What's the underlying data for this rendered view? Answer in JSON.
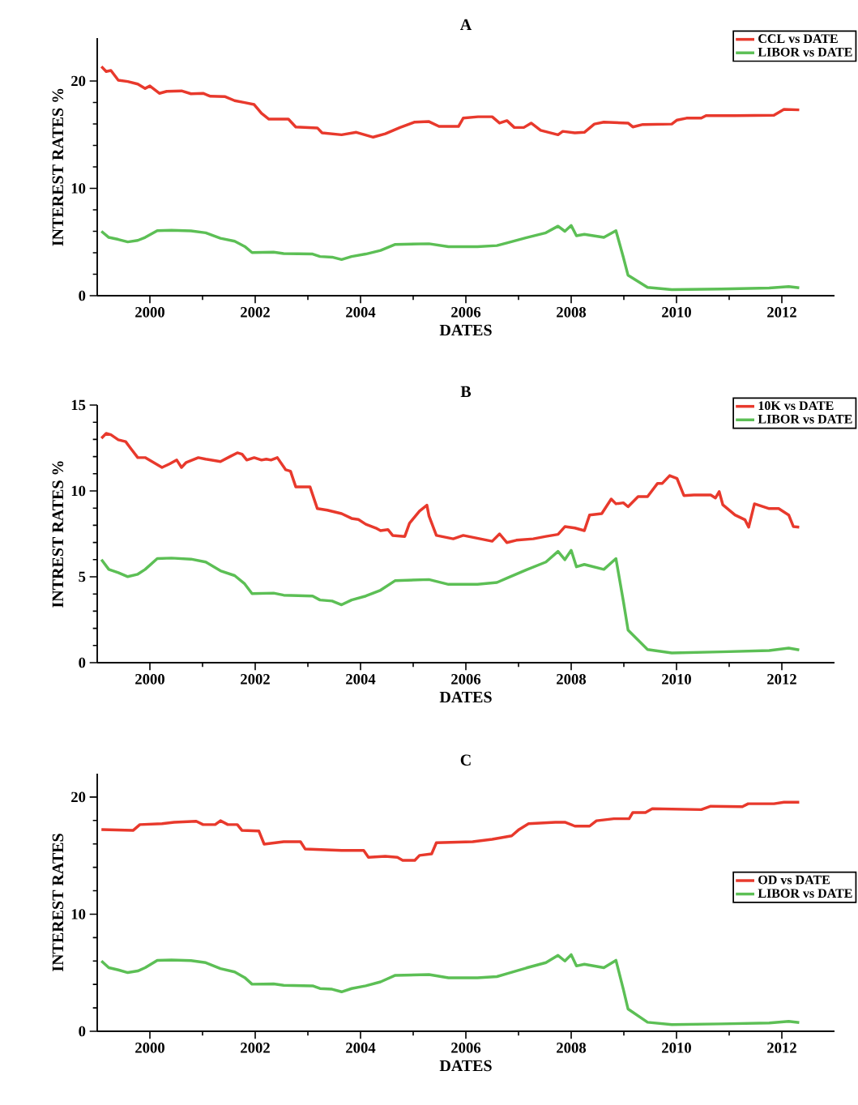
{
  "chart_data": [
    {
      "type": "line",
      "title": "A",
      "xlabel": "DATES",
      "ylabel": "INTEREST RATES %",
      "xlim": [
        1999,
        2013
      ],
      "ylim": [
        0,
        24
      ],
      "xticks": [
        2000,
        2002,
        2004,
        2006,
        2008,
        2010,
        2012
      ],
      "yticks": [
        0,
        10,
        20
      ],
      "legend": "top right",
      "series": [
        {
          "name": "CCL vs DATE",
          "color": "#e8392c",
          "x": [
            1999.08,
            1999.17,
            1999.26,
            1999.4,
            1999.58,
            1999.77,
            1999.91,
            2000.0,
            2000.18,
            2000.32,
            2000.6,
            2000.78,
            2001.01,
            2001.15,
            2001.43,
            2001.61,
            2001.8,
            2001.98,
            2002.12,
            2002.26,
            2002.63,
            2002.77,
            2003.18,
            2003.27,
            2003.64,
            2003.92,
            2004.24,
            2004.47,
            2004.75,
            2005.03,
            2005.3,
            2005.49,
            2005.86,
            2005.95,
            2006.23,
            2006.5,
            2006.64,
            2006.78,
            2006.92,
            2007.1,
            2007.24,
            2007.42,
            2007.75,
            2007.84,
            2008.07,
            2008.25,
            2008.44,
            2008.62,
            2009.08,
            2009.17,
            2009.36,
            2009.91,
            2010.01,
            2010.19,
            2010.47,
            2010.56,
            2011.11,
            2011.85,
            2012.04,
            2012.33
          ],
          "values": [
            21.35,
            20.89,
            20.98,
            20.08,
            19.95,
            19.72,
            19.31,
            19.54,
            18.85,
            19.04,
            19.08,
            18.81,
            18.85,
            18.58,
            18.54,
            18.17,
            17.99,
            17.81,
            16.99,
            16.45,
            16.45,
            15.72,
            15.63,
            15.17,
            14.99,
            15.22,
            14.77,
            15.08,
            15.67,
            16.17,
            16.22,
            15.77,
            15.77,
            16.54,
            16.67,
            16.67,
            16.08,
            16.31,
            15.67,
            15.67,
            16.08,
            15.4,
            14.99,
            15.31,
            15.17,
            15.22,
            15.99,
            16.17,
            16.08,
            15.72,
            15.95,
            15.99,
            16.36,
            16.54,
            16.54,
            16.77,
            16.77,
            16.81,
            17.36,
            17.31
          ]
        },
        {
          "name": "LIBOR vs DATE",
          "color": "#5cbf55",
          "x": [
            1999.08,
            1999.22,
            1999.4,
            1999.58,
            1999.77,
            1999.91,
            2000.14,
            2000.41,
            2000.78,
            2001.06,
            2001.34,
            2001.61,
            2001.8,
            2001.94,
            2002.35,
            2002.54,
            2003.09,
            2003.23,
            2003.46,
            2003.64,
            2003.83,
            2004.1,
            2004.38,
            2004.66,
            2005.3,
            2005.67,
            2006.22,
            2006.59,
            2006.78,
            2007.15,
            2007.52,
            2007.75,
            2007.88,
            2008.0,
            2008.1,
            2008.25,
            2008.62,
            2008.85,
            2008.99,
            2009.08,
            2009.45,
            2009.91,
            2010.84,
            2011.76,
            2012.13,
            2012.33
          ],
          "values": [
            6.0,
            5.43,
            5.24,
            5.01,
            5.15,
            5.43,
            6.06,
            6.09,
            6.03,
            5.86,
            5.35,
            5.07,
            4.59,
            4.02,
            4.05,
            3.93,
            3.88,
            3.65,
            3.59,
            3.37,
            3.65,
            3.88,
            4.22,
            4.78,
            4.84,
            4.56,
            4.56,
            4.67,
            4.92,
            5.41,
            5.86,
            6.48,
            6.0,
            6.54,
            5.58,
            5.72,
            5.43,
            6.06,
            3.59,
            1.9,
            0.77,
            0.57,
            0.63,
            0.71,
            0.85,
            0.74
          ]
        }
      ]
    },
    {
      "type": "line",
      "title": "B",
      "xlabel": "DATES",
      "ylabel": "INTREST RATES %",
      "xlim": [
        1999,
        2013
      ],
      "ylim": [
        0,
        15
      ],
      "xticks": [
        2000,
        2002,
        2004,
        2006,
        2008,
        2010,
        2012
      ],
      "yticks": [
        0,
        5,
        10,
        15
      ],
      "legend": "top right",
      "series": [
        {
          "name": "10K vs DATE",
          "color": "#e8392c",
          "x": [
            1999.08,
            1999.17,
            1999.26,
            1999.4,
            1999.54,
            1999.63,
            1999.77,
            1999.91,
            2000.23,
            2000.37,
            2000.51,
            2000.6,
            2000.69,
            2000.92,
            2001.06,
            2001.34,
            2001.52,
            2001.66,
            2001.75,
            2001.84,
            2001.98,
            2002.12,
            2002.21,
            2002.3,
            2002.42,
            2002.58,
            2002.67,
            2002.77,
            2003.04,
            2003.18,
            2003.37,
            2003.64,
            2003.83,
            2003.96,
            2004.1,
            2004.29,
            2004.38,
            2004.52,
            2004.61,
            2004.84,
            2004.93,
            2005.12,
            2005.26,
            2005.3,
            2005.44,
            2005.76,
            2005.95,
            2006.5,
            2006.64,
            2006.78,
            2006.96,
            2007.28,
            2007.52,
            2007.75,
            2007.88,
            2008.07,
            2008.25,
            2008.35,
            2008.58,
            2008.76,
            2008.85,
            2008.99,
            2009.08,
            2009.27,
            2009.45,
            2009.64,
            2009.73,
            2009.87,
            2010.01,
            2010.14,
            2010.33,
            2010.65,
            2010.74,
            2010.81,
            2010.88,
            2011.11,
            2011.3,
            2011.37,
            2011.48,
            2011.76,
            2011.94,
            2012.13,
            2012.22,
            2012.33
          ],
          "values": [
            13.07,
            13.35,
            13.27,
            12.98,
            12.87,
            12.5,
            11.94,
            11.94,
            11.37,
            11.57,
            11.8,
            11.37,
            11.66,
            11.94,
            11.85,
            11.71,
            12.0,
            12.22,
            12.14,
            11.8,
            11.94,
            11.8,
            11.85,
            11.8,
            11.94,
            11.23,
            11.15,
            10.24,
            10.24,
            8.97,
            8.88,
            8.68,
            8.4,
            8.34,
            8.06,
            7.84,
            7.69,
            7.75,
            7.41,
            7.35,
            8.12,
            8.83,
            9.17,
            8.54,
            7.41,
            7.21,
            7.41,
            7.07,
            7.5,
            6.99,
            7.13,
            7.21,
            7.35,
            7.47,
            7.92,
            7.84,
            7.69,
            8.6,
            8.68,
            9.53,
            9.25,
            9.31,
            9.08,
            9.67,
            9.67,
            10.44,
            10.44,
            10.89,
            10.72,
            9.73,
            9.76,
            9.76,
            9.59,
            9.96,
            9.19,
            8.6,
            8.32,
            7.89,
            9.25,
            8.97,
            8.97,
            8.6,
            7.92,
            7.89
          ]
        },
        {
          "name": "LIBOR vs DATE",
          "color": "#5cbf55",
          "x": [
            1999.08,
            1999.22,
            1999.4,
            1999.58,
            1999.77,
            1999.91,
            2000.14,
            2000.41,
            2000.78,
            2001.06,
            2001.34,
            2001.61,
            2001.8,
            2001.94,
            2002.35,
            2002.54,
            2003.09,
            2003.23,
            2003.46,
            2003.64,
            2003.83,
            2004.1,
            2004.38,
            2004.66,
            2005.3,
            2005.67,
            2006.22,
            2006.59,
            2006.78,
            2007.15,
            2007.52,
            2007.75,
            2007.88,
            2008.0,
            2008.1,
            2008.25,
            2008.62,
            2008.85,
            2008.99,
            2009.08,
            2009.45,
            2009.91,
            2010.84,
            2011.76,
            2012.13,
            2012.33
          ],
          "values": [
            6.0,
            5.43,
            5.24,
            5.01,
            5.15,
            5.43,
            6.06,
            6.09,
            6.03,
            5.86,
            5.35,
            5.07,
            4.59,
            4.02,
            4.05,
            3.93,
            3.88,
            3.65,
            3.59,
            3.37,
            3.65,
            3.88,
            4.22,
            4.78,
            4.84,
            4.56,
            4.56,
            4.67,
            4.92,
            5.41,
            5.86,
            6.48,
            6.0,
            6.54,
            5.58,
            5.72,
            5.43,
            6.06,
            3.59,
            1.9,
            0.77,
            0.57,
            0.63,
            0.71,
            0.85,
            0.74
          ]
        }
      ]
    },
    {
      "type": "line",
      "title": "C",
      "xlabel": "DATES",
      "ylabel": "INTEREST RATES",
      "xlim": [
        1999,
        2013
      ],
      "ylim": [
        0,
        22
      ],
      "xticks": [
        2000,
        2002,
        2004,
        2006,
        2008,
        2010,
        2012
      ],
      "yticks": [
        0,
        10,
        20
      ],
      "legend": "right",
      "series": [
        {
          "name": "OD vs DATE",
          "color": "#e8392c",
          "x": [
            1999.08,
            1999.68,
            1999.81,
            2000.23,
            2000.46,
            2000.88,
            2001.01,
            2001.24,
            2001.34,
            2001.48,
            2001.66,
            2001.75,
            2002.07,
            2002.17,
            2002.54,
            2002.86,
            2002.95,
            2003.64,
            2004.06,
            2004.15,
            2004.47,
            2004.7,
            2004.8,
            2005.03,
            2005.12,
            2005.35,
            2005.44,
            2006.13,
            2006.5,
            2006.87,
            2007.01,
            2007.19,
            2007.7,
            2007.88,
            2008.07,
            2008.35,
            2008.48,
            2008.81,
            2009.1,
            2009.17,
            2009.41,
            2009.54,
            2010.47,
            2010.65,
            2011.25,
            2011.36,
            2011.85,
            2012.04,
            2012.33
          ],
          "values": [
            17.23,
            17.15,
            17.65,
            17.73,
            17.85,
            17.94,
            17.65,
            17.65,
            17.98,
            17.65,
            17.65,
            17.15,
            17.1,
            15.98,
            16.19,
            16.19,
            15.56,
            15.44,
            15.44,
            14.85,
            14.94,
            14.85,
            14.6,
            14.6,
            15.02,
            15.15,
            16.1,
            16.19,
            16.4,
            16.69,
            17.23,
            17.73,
            17.85,
            17.85,
            17.52,
            17.52,
            17.98,
            18.15,
            18.15,
            18.68,
            18.68,
            19.01,
            18.93,
            19.22,
            19.18,
            19.43,
            19.43,
            19.56,
            19.56
          ]
        },
        {
          "name": "LIBOR vs DATE",
          "color": "#5cbf55",
          "x": [
            1999.08,
            1999.22,
            1999.4,
            1999.58,
            1999.77,
            1999.91,
            2000.14,
            2000.41,
            2000.78,
            2001.06,
            2001.34,
            2001.61,
            2001.8,
            2001.94,
            2002.35,
            2002.54,
            2003.09,
            2003.23,
            2003.46,
            2003.64,
            2003.83,
            2004.1,
            2004.38,
            2004.66,
            2005.3,
            2005.67,
            2006.22,
            2006.59,
            2006.78,
            2007.15,
            2007.52,
            2007.75,
            2007.88,
            2008.0,
            2008.1,
            2008.25,
            2008.62,
            2008.85,
            2008.99,
            2009.08,
            2009.45,
            2009.91,
            2010.84,
            2011.76,
            2012.13,
            2012.33
          ],
          "values": [
            6.0,
            5.43,
            5.24,
            5.01,
            5.15,
            5.43,
            6.06,
            6.09,
            6.03,
            5.86,
            5.35,
            5.07,
            4.59,
            4.02,
            4.05,
            3.93,
            3.88,
            3.65,
            3.59,
            3.37,
            3.65,
            3.88,
            4.22,
            4.78,
            4.84,
            4.56,
            4.56,
            4.67,
            4.92,
            5.41,
            5.86,
            6.48,
            6.0,
            6.54,
            5.58,
            5.72,
            5.43,
            6.06,
            3.59,
            1.9,
            0.77,
            0.57,
            0.63,
            0.71,
            0.85,
            0.74
          ]
        }
      ]
    }
  ]
}
